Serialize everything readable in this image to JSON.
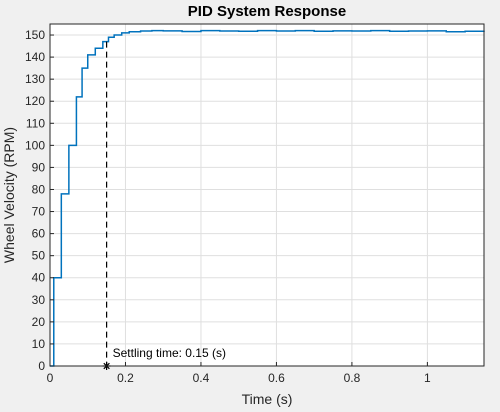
{
  "chart_data": {
    "type": "line",
    "title": "PID System Response",
    "xlabel": "Time (s)",
    "ylabel": "Wheel Velocity (RPM)",
    "xlim": [
      0,
      1.15
    ],
    "ylim": [
      0,
      155
    ],
    "xticks": [
      0,
      0.2,
      0.4,
      0.6,
      0.8,
      1
    ],
    "xtick_labels": [
      "0",
      "0.2",
      "0.4",
      "0.6",
      "0.8",
      "1"
    ],
    "yticks": [
      0,
      10,
      20,
      30,
      40,
      50,
      60,
      70,
      80,
      90,
      100,
      110,
      120,
      130,
      140,
      150
    ],
    "grid": true,
    "series": [
      {
        "color": "#0072BD",
        "style": "step",
        "x": [
          0,
          0.01,
          0.03,
          0.05,
          0.07,
          0.085,
          0.1,
          0.12,
          0.14,
          0.155,
          0.17,
          0.19,
          0.21,
          0.24,
          0.27,
          0.3,
          0.35,
          0.4,
          0.45,
          0.5,
          0.55,
          0.6,
          0.65,
          0.7,
          0.75,
          0.8,
          0.85,
          0.9,
          0.95,
          1.0,
          1.05,
          1.1,
          1.15
        ],
        "y": [
          0,
          40,
          78,
          100,
          122,
          135,
          141,
          144,
          147,
          149,
          150,
          151,
          151.5,
          151.8,
          152,
          151.9,
          151.6,
          152,
          151.8,
          151.7,
          152,
          151.8,
          152,
          151.7,
          151.9,
          151.8,
          152,
          151.7,
          151.8,
          151.9,
          151.5,
          151.7,
          152
        ]
      }
    ],
    "annotations": [
      {
        "text": "Settling time: 0.15 (s)",
        "x": 0.15,
        "y": 0,
        "marker": "*",
        "line": "dashed-vertical"
      }
    ]
  }
}
